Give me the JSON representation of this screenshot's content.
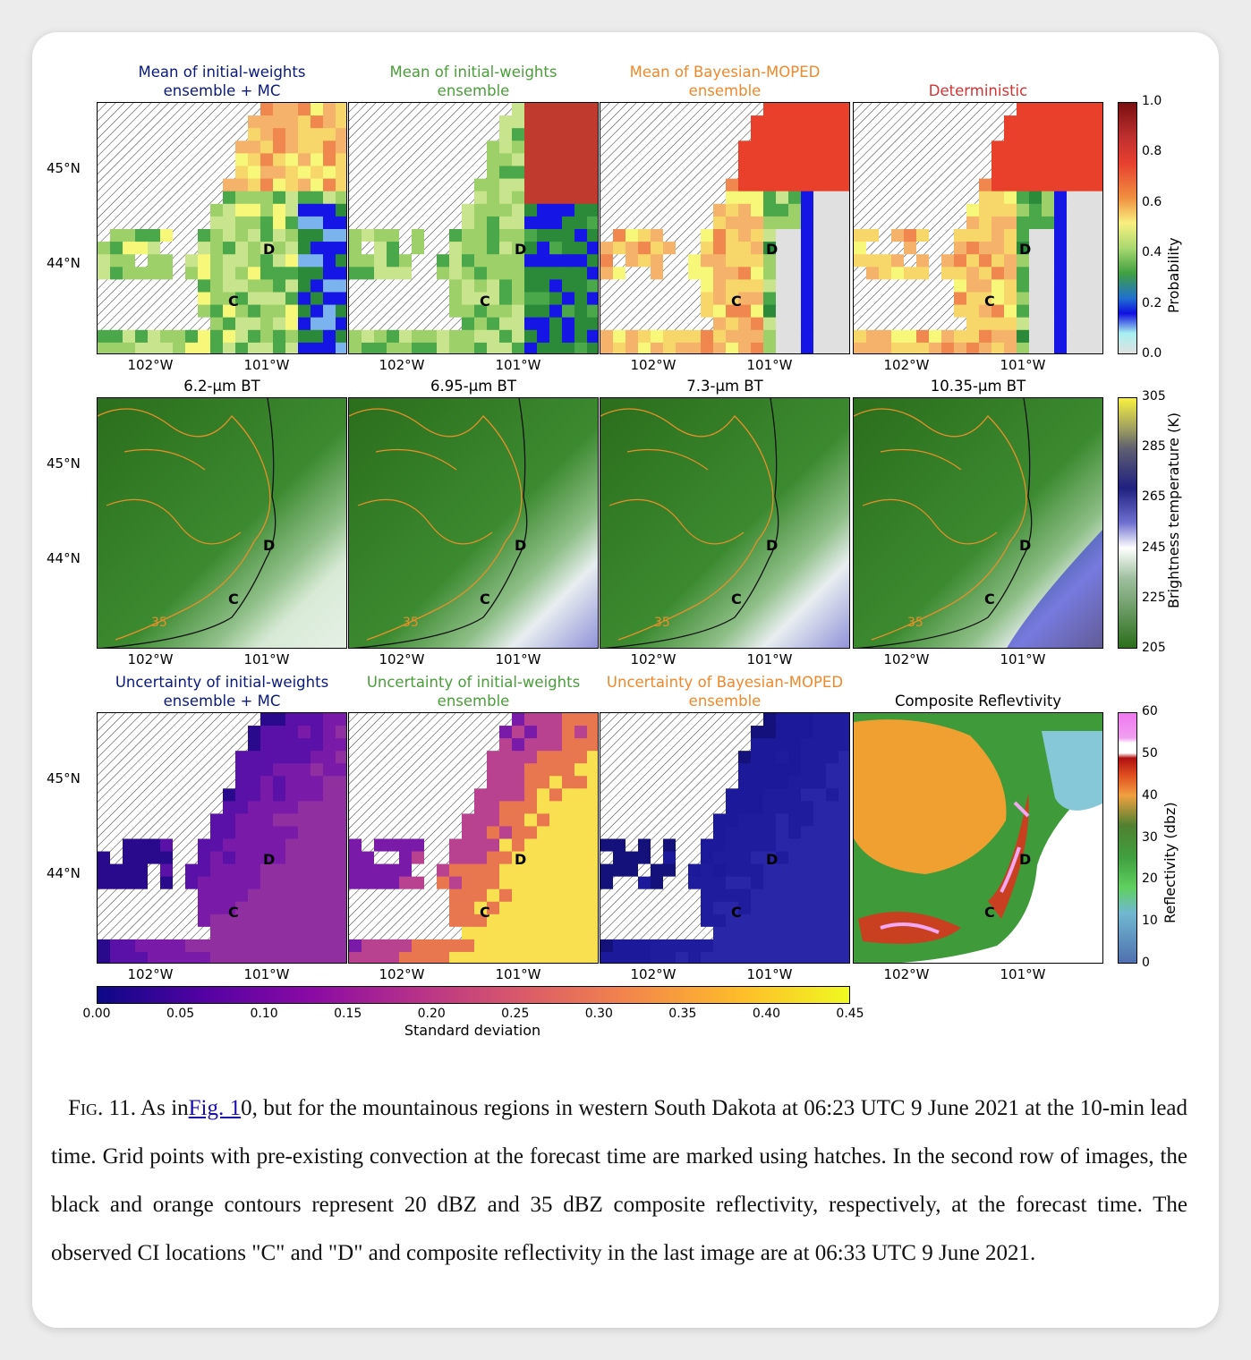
{
  "row1": {
    "titles": [
      {
        "line1": "Mean of initial-weights",
        "line2": "ensemble + MC",
        "color": "#0b1a7a"
      },
      {
        "line1": "Mean of initial-weights",
        "line2": "ensemble",
        "color": "#4a9e3a"
      },
      {
        "line1": "Mean of Bayesian-MOPED",
        "line2": "ensemble",
        "color": "#f0882a"
      },
      {
        "line1": "Deterministic",
        "line2": "",
        "color": "#d63232"
      }
    ],
    "colorbar": {
      "label": "Probability",
      "ticks": [
        "1.0",
        "0.8",
        "0.6",
        "0.4",
        "0.2",
        "0.0"
      ]
    }
  },
  "row2": {
    "titles": [
      "6.2-µm BT",
      "6.95-µm BT",
      "7.3-µm BT",
      "10.35-µm BT"
    ],
    "colorbar": {
      "label": "Brightness temperature (K)",
      "ticks": [
        "305",
        "285",
        "265",
        "245",
        "225",
        "205"
      ]
    },
    "contour_label": "35"
  },
  "row3": {
    "titles": [
      {
        "line1": "Uncertainty of initial-weights",
        "line2": "ensemble + MC",
        "color": "#0b1a7a"
      },
      {
        "line1": "Uncertainty of initial-weights",
        "line2": "ensemble",
        "color": "#4a9e3a"
      },
      {
        "line1": "Uncertainty of Bayesian-MOPED",
        "line2": "ensemble",
        "color": "#f0882a"
      },
      {
        "line1": "Composite Reflevtivity",
        "line2": "",
        "color": "#000000"
      }
    ],
    "colorbar": {
      "label": "Reflectivity (dbz)",
      "ticks": [
        "60",
        "50",
        "40",
        "30",
        "20",
        "10",
        "0"
      ]
    },
    "hcolorbar": {
      "label": "Standard deviation",
      "ticks": [
        "0.00",
        "0.05",
        "0.10",
        "0.15",
        "0.20",
        "0.25",
        "0.30",
        "0.35",
        "0.40",
        "0.45"
      ]
    }
  },
  "axes": {
    "lon": [
      "102°W",
      "101°W"
    ],
    "lat": [
      "45°N",
      "44°N"
    ]
  },
  "markers": {
    "c": "C",
    "d": "D"
  },
  "caption": {
    "fig": "Fig. 11.",
    "as_in": "As in",
    "link": "Fig. 1",
    "rest": "0, but for the mountainous regions in western South Dakota at 06:23 UTC 9 June 2021 at the 10-min lead time. Grid points with pre-existing convection at the forecast time are marked using hatches. In the second row of images, the black and orange contours represent 20 dBZ and 35 dBZ composite reflectivity, respectively, at the forecast time. The observed CI locations \"C\" and \"D\" and composite reflectivity in the last image are at 06:33 UTC 9 June 2021."
  }
}
